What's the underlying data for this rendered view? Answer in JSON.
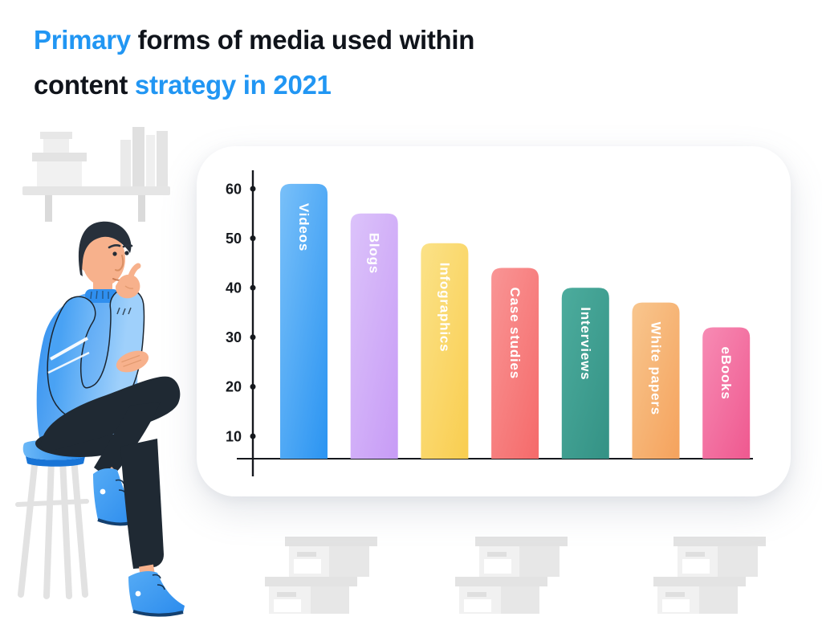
{
  "title": {
    "part1": "Primary",
    "part2": " forms of media used within",
    "part3": "content",
    "part4": " strategy in 2021"
  },
  "colors": {
    "accent_blue": "#2196F3",
    "title_text": "#10141B",
    "axis": "#15181D",
    "bar_label": "#FFFFFF",
    "card_background": "#FFFFFF"
  },
  "chart_data": {
    "type": "bar",
    "title": "Primary forms of media used within content strategy in 2021",
    "categories": [
      "Videos",
      "Blogs",
      "Infographics",
      "Case studies",
      "Interviews",
      "White papers",
      "eBooks"
    ],
    "values": [
      61,
      55,
      49,
      44,
      40,
      37,
      32
    ],
    "bar_colors_main": [
      "#2E96F2",
      "#C89DF6",
      "#F9CE52",
      "#F56C6C",
      "#359386",
      "#F5A45F",
      "#EF5B91"
    ],
    "bar_colors_light": [
      "#79C0F9",
      "#DCC3FA",
      "#FBE288",
      "#F99595",
      "#4CAC9D",
      "#F8C68E",
      "#F78BB4"
    ],
    "yticks": [
      10,
      20,
      30,
      40,
      50,
      60
    ],
    "ylim": [
      0,
      65
    ],
    "xlabel": "",
    "ylabel": "",
    "grid": false,
    "legend": false,
    "bar_label_position": "inside-top-vertical"
  }
}
